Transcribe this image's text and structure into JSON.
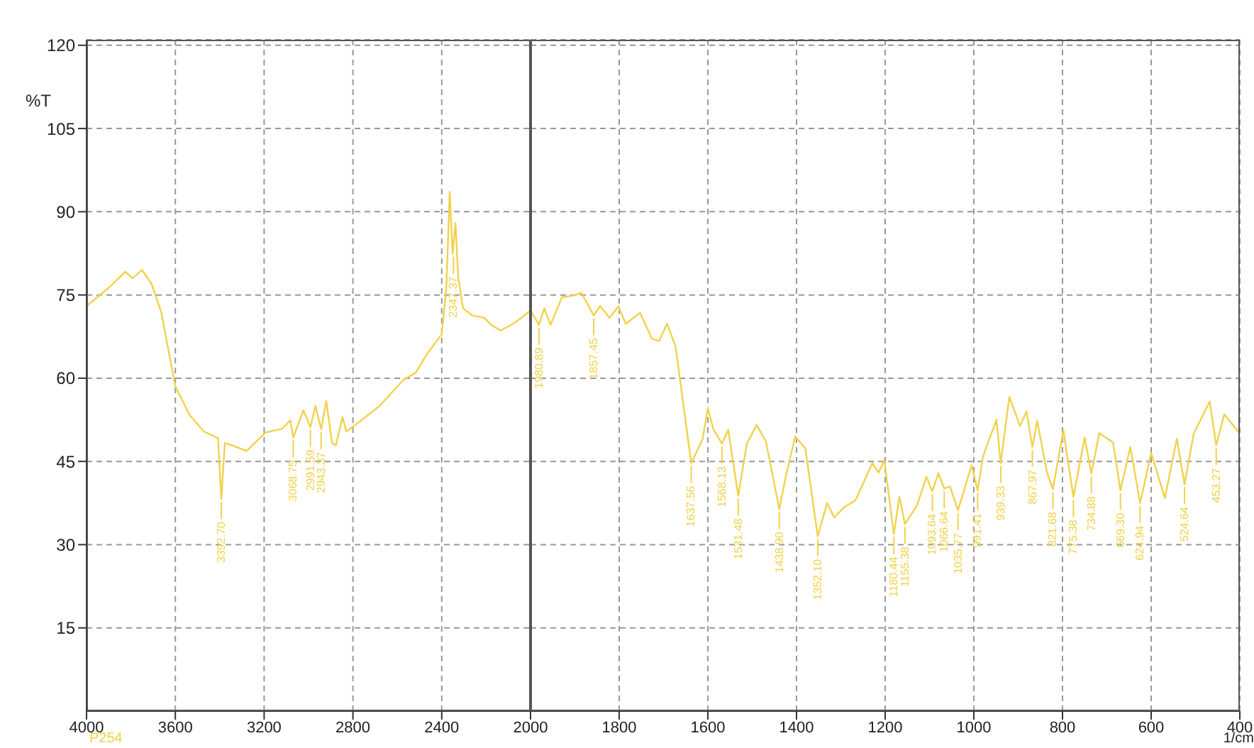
{
  "chart_data": [
    {
      "type": "line",
      "ylabel": "%T",
      "xlim": [
        4000,
        2000
      ],
      "xticks": [
        4000,
        3600,
        3200,
        2800,
        2400,
        2000
      ],
      "ylim": [
        0,
        121
      ],
      "yticks": [
        15,
        30,
        45,
        60,
        75,
        90,
        105,
        120
      ],
      "grid": true,
      "legend": "bottom left",
      "marker": "none",
      "line_style": "solid",
      "tick_labels": "xy",
      "series": [
        {
          "name": "P254",
          "color": "#f2d24b",
          "x": [
            4000,
            3900,
            3825,
            3793,
            3750,
            3707,
            3664,
            3600,
            3536,
            3472,
            3408,
            3392.7,
            3377,
            3343,
            3279,
            3194,
            3119,
            3082,
            3069,
            3023,
            2991.6,
            2969,
            2943,
            2920,
            2894,
            2877,
            2847,
            2830,
            2798,
            2680,
            2573,
            2517,
            2466,
            2400,
            2379,
            2364,
            2351,
            2338,
            2326,
            2304,
            2262,
            2209,
            2177,
            2134,
            2070,
            2000
          ],
          "values": [
            73,
            76.3,
            79.2,
            78,
            79.5,
            77,
            72,
            58.5,
            53.4,
            50.4,
            49.2,
            38.2,
            48.3,
            47.9,
            46.9,
            50.2,
            50.9,
            52.4,
            49.3,
            54.2,
            51.2,
            55,
            50.8,
            55.9,
            48.3,
            47.9,
            53,
            50.4,
            51.3,
            55,
            59.7,
            61,
            64.4,
            67.9,
            76.5,
            93.6,
            82.4,
            88,
            78.2,
            72.6,
            71.3,
            70.9,
            69.6,
            68.6,
            70,
            72.2
          ]
        }
      ],
      "annotations": [
        {
          "text": "3392.70",
          "x": 3392.7,
          "y": 38.2
        },
        {
          "text": "3068.75",
          "x": 3068.75,
          "y": 49.3
        },
        {
          "text": "2991.59",
          "x": 2991.59,
          "y": 51.2
        },
        {
          "text": "2943.37",
          "x": 2943.37,
          "y": 50.8
        },
        {
          "text": "2347.37",
          "x": 2347.37,
          "y": 82.4
        }
      ]
    },
    {
      "type": "line",
      "xlabel": "1/cm",
      "xlim": [
        2000,
        400
      ],
      "xticks": [
        {
          "value": 2000,
          "label": null
        },
        1800,
        1600,
        1400,
        1200,
        1000,
        800,
        600,
        400
      ],
      "ylim": [
        0,
        121
      ],
      "yticks": [
        15,
        30,
        45,
        60,
        75,
        90,
        105,
        120
      ],
      "grid": true,
      "marker": "none",
      "line_style": "solid",
      "tick_labels": "x",
      "series": [
        {
          "color": "#f2d24b",
          "x": [
            2000,
            1980.89,
            1969,
            1955,
            1929,
            1902,
            1886,
            1875,
            1857.45,
            1843,
            1822,
            1802,
            1785,
            1753,
            1726,
            1710,
            1692,
            1673,
            1637.56,
            1612,
            1600,
            1588,
            1568.13,
            1554,
            1531.48,
            1512,
            1490,
            1469,
            1438.9,
            1422,
            1403,
            1380,
            1352.1,
            1331,
            1315,
            1293,
            1267,
            1229,
            1215,
            1202,
            1180.44,
            1168,
            1155.38,
            1128,
            1107,
            1093.64,
            1080,
            1066.64,
            1054,
            1035.77,
            1005,
            991.41,
            979,
            949,
            939.33,
            920,
            896,
            881,
            867.97,
            857,
            835,
            821.68,
            798,
            775.38,
            750,
            734.88,
            717,
            686,
            669.3,
            647,
            624.94,
            600,
            569,
            542,
            524.64,
            504,
            468,
            453.27,
            435,
            405,
            400
          ],
          "values": [
            72.2,
            69.6,
            72.6,
            69.6,
            74.6,
            74.9,
            75.4,
            73.9,
            71.3,
            73,
            70.9,
            72.9,
            69.8,
            71.8,
            67.1,
            66.7,
            69.8,
            65.8,
            44.7,
            49,
            54.6,
            50.9,
            48.2,
            50.7,
            38.8,
            48.2,
            51.6,
            48.6,
            36.4,
            43.1,
            49.5,
            47.3,
            31.5,
            37.5,
            34.9,
            36.7,
            38,
            44.7,
            43,
            45.2,
            31.9,
            38.6,
            33.7,
            37.1,
            42.2,
            39.6,
            42.9,
            40.1,
            40.5,
            36.2,
            44.3,
            39.8,
            46,
            52.5,
            44.7,
            56.6,
            51.4,
            54,
            47.6,
            52.3,
            43,
            40,
            50.6,
            38.6,
            49.3,
            42.8,
            50.1,
            48.4,
            39.8,
            47.6,
            37.5,
            46.5,
            38.4,
            49.1,
            40.9,
            50,
            55.8,
            47.9,
            53.5,
            50.5,
            50
          ]
        }
      ],
      "annotations": [
        {
          "text": "1980.89",
          "x": 1980.89,
          "y": 69.6
        },
        {
          "text": "1857.45",
          "x": 1857.45,
          "y": 71.3
        },
        {
          "text": "1637.56",
          "x": 1637.56,
          "y": 44.7
        },
        {
          "text": "1568.13",
          "x": 1568.13,
          "y": 48.2
        },
        {
          "text": "1531.48",
          "x": 1531.48,
          "y": 38.8
        },
        {
          "text": "1438.90",
          "x": 1438.9,
          "y": 36.4
        },
        {
          "text": "1352.10",
          "x": 1352.1,
          "y": 31.5
        },
        {
          "text": "1180.44",
          "x": 1180.44,
          "y": 31.9
        },
        {
          "text": "1155.38",
          "x": 1155.38,
          "y": 33.7
        },
        {
          "text": "1093.64",
          "x": 1093.64,
          "y": 39.6
        },
        {
          "text": "1066.64",
          "x": 1066.64,
          "y": 40.1
        },
        {
          "text": "1035.77",
          "x": 1035.77,
          "y": 36.2
        },
        {
          "text": "991.41",
          "x": 991.41,
          "y": 39.8
        },
        {
          "text": "939.33",
          "x": 939.33,
          "y": 44.7
        },
        {
          "text": "867.97",
          "x": 867.97,
          "y": 47.6
        },
        {
          "text": "821.68",
          "x": 821.68,
          "y": 40
        },
        {
          "text": "775.38",
          "x": 775.38,
          "y": 38.6
        },
        {
          "text": "734.88",
          "x": 734.88,
          "y": 42.8
        },
        {
          "text": "669.30",
          "x": 669.3,
          "y": 39.8
        },
        {
          "text": "624.94",
          "x": 624.94,
          "y": 37.5
        },
        {
          "text": "524.64",
          "x": 524.64,
          "y": 40.9
        },
        {
          "text": "453.27",
          "x": 453.27,
          "y": 47.9
        }
      ]
    }
  ]
}
